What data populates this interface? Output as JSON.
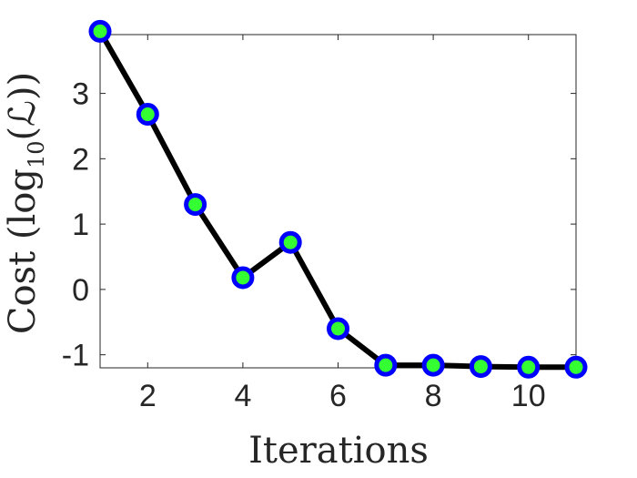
{
  "chart_data": {
    "type": "line",
    "x": [
      1,
      2,
      3,
      4,
      5,
      6,
      7,
      8,
      9,
      10,
      11
    ],
    "series": [
      {
        "values": [
          3.95,
          2.68,
          1.3,
          0.18,
          0.72,
          -0.6,
          -1.16,
          -1.16,
          -1.18,
          -1.19,
          -1.19
        ]
      }
    ],
    "xlabel": "Iterations",
    "ylabel": {
      "prefix": "Cost (log",
      "subscript": "10",
      "suffix": "(ℒ))"
    },
    "xlim": [
      1,
      11
    ],
    "ylim": [
      -1.2,
      3.9
    ],
    "xticks": [
      "2",
      "4",
      "6",
      "8",
      "10"
    ],
    "yticks": [
      "-1",
      "0",
      "1",
      "2",
      "3"
    ],
    "grid": false,
    "colors": {
      "line": "#000000",
      "marker_edge": "#0000ff",
      "marker_face": "#33ff33",
      "axis": "#262626"
    }
  }
}
